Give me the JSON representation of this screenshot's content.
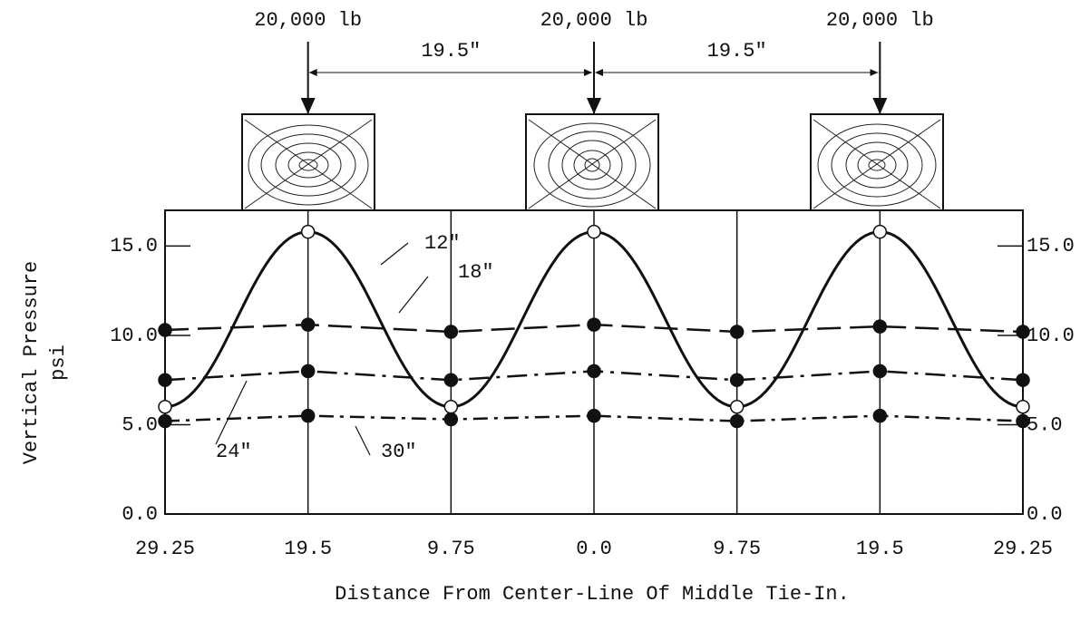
{
  "chart_data": {
    "type": "line",
    "loads": [
      "20,000 lb",
      "20,000 lb",
      "20,000 lb"
    ],
    "spacings": [
      "19.5\"",
      "19.5\""
    ],
    "y_label": [
      "Vertical Pressure",
      "psi"
    ],
    "x_label": "Distance From Center-Line Of Middle Tie-In.",
    "categories": [
      "29.25",
      "19.5",
      "9.75",
      "0.0",
      "9.75",
      "19.5",
      "29.25"
    ],
    "series": [
      {
        "name": "12\"",
        "color": "#111111",
        "line_style": "solid",
        "marker": "open",
        "values": [
          6.0,
          15.8,
          6.0,
          15.8,
          6.0,
          15.8,
          6.0
        ]
      },
      {
        "name": "18\"",
        "color": "#111111",
        "line_style": "dashed",
        "marker": "filled",
        "values": [
          10.3,
          10.6,
          10.2,
          10.6,
          10.2,
          10.5,
          10.2
        ]
      },
      {
        "name": "24\"",
        "color": "#111111",
        "line_style": "dashdot",
        "marker": "filled",
        "values": [
          7.5,
          8.0,
          7.5,
          8.0,
          7.5,
          8.0,
          7.5
        ]
      },
      {
        "name": "30\"",
        "color": "#111111",
        "line_style": "dashdotdot",
        "marker": "filled",
        "values": [
          5.2,
          5.5,
          5.3,
          5.5,
          5.2,
          5.5,
          5.2
        ]
      }
    ],
    "ylim": [
      0,
      17
    ],
    "yticks": [
      {
        "value": 0,
        "label": "0.0"
      },
      {
        "value": 5,
        "label": "5.0"
      },
      {
        "value": 10,
        "label": "10.0"
      },
      {
        "value": 15,
        "label": "15.0"
      }
    ],
    "y2lim": [
      0,
      17
    ],
    "y2ticks": [
      {
        "value": 0,
        "label": "0.0"
      },
      {
        "value": 5,
        "label": "5.0"
      },
      {
        "value": 10,
        "label": "10.0"
      },
      {
        "value": 15,
        "label": "15.0"
      }
    ]
  }
}
